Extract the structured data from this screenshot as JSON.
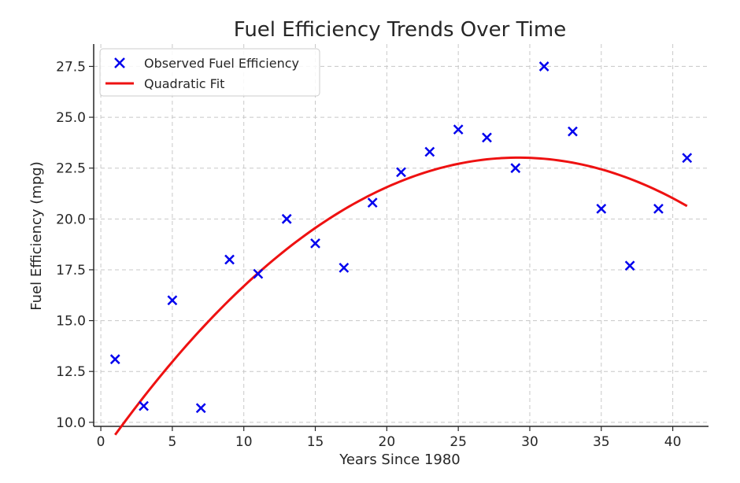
{
  "chart_data": {
    "type": "scatter",
    "title": "Fuel Efficiency Trends Over Time",
    "xlabel": "Years Since 1980",
    "ylabel": "Fuel Efficiency (mpg)",
    "xlim": [
      -0.5,
      42.5
    ],
    "ylim": [
      9.8,
      28.6
    ],
    "grid": true,
    "legend_position": "top-left",
    "x_ticks": [
      0,
      5,
      10,
      15,
      20,
      25,
      30,
      35,
      40
    ],
    "x_tick_labels": [
      "0",
      "5",
      "10",
      "15",
      "20",
      "25",
      "30",
      "35",
      "40"
    ],
    "y_ticks": [
      10.0,
      12.5,
      15.0,
      17.5,
      20.0,
      22.5,
      25.0,
      27.5
    ],
    "y_tick_labels": [
      "10.0",
      "12.5",
      "15.0",
      "17.5",
      "20.0",
      "22.5",
      "25.0",
      "27.5"
    ],
    "series": [
      {
        "name": "Observed Fuel Efficiency",
        "kind": "scatter",
        "marker": "x",
        "color": "#0000ee",
        "x": [
          1,
          3,
          5,
          7,
          9,
          11,
          13,
          15,
          17,
          19,
          21,
          23,
          25,
          27,
          29,
          31,
          33,
          35,
          37,
          39,
          41
        ],
        "y": [
          13.1,
          10.8,
          16.0,
          10.7,
          18.0,
          17.3,
          20.0,
          18.8,
          17.6,
          20.8,
          22.3,
          23.3,
          24.4,
          24.0,
          22.5,
          27.5,
          24.3,
          20.5,
          17.7,
          20.5,
          23.0
        ]
      },
      {
        "name": "Quadratic Fit",
        "kind": "line",
        "color": "#ee1111",
        "x_range": [
          1,
          41
        ],
        "coefficients": {
          "a": -0.01713,
          "b": 1.0007,
          "c": 8.4
        }
      }
    ]
  }
}
